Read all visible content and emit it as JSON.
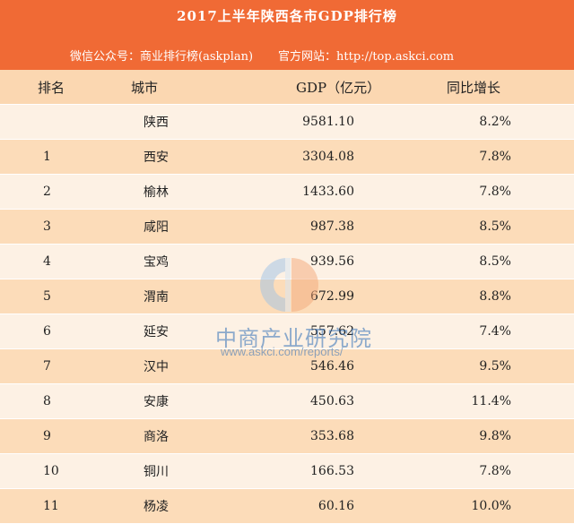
{
  "header": {
    "title": "2017上半年陕西各市GDP排行榜",
    "wechat": "微信公众号：商业排行榜(askplan)",
    "website": "官方网站：http://top.askci.com"
  },
  "chart_data": {
    "type": "table",
    "columns": [
      "排名",
      "城市",
      "GDP（亿元）",
      "同比增长"
    ],
    "rows": [
      {
        "rank": "",
        "city": "陕西",
        "gdp": "9581.10",
        "growth": "8.2%"
      },
      {
        "rank": "1",
        "city": "西安",
        "gdp": "3304.08",
        "growth": "7.8%"
      },
      {
        "rank": "2",
        "city": "榆林",
        "gdp": "1433.60",
        "growth": "7.8%"
      },
      {
        "rank": "3",
        "city": "咸阳",
        "gdp": "987.38",
        "growth": "8.5%"
      },
      {
        "rank": "4",
        "city": "宝鸡",
        "gdp": "939.56",
        "growth": "8.5%"
      },
      {
        "rank": "5",
        "city": "渭南",
        "gdp": "672.99",
        "growth": "8.8%"
      },
      {
        "rank": "6",
        "city": "延安",
        "gdp": "557.62",
        "growth": "7.4%"
      },
      {
        "rank": "7",
        "city": "汉中",
        "gdp": "546.46",
        "growth": "9.5%"
      },
      {
        "rank": "8",
        "city": "安康",
        "gdp": "450.63",
        "growth": "11.4%"
      },
      {
        "rank": "9",
        "city": "商洛",
        "gdp": "353.68",
        "growth": "9.8%"
      },
      {
        "rank": "10",
        "city": "铜川",
        "gdp": "166.53",
        "growth": "7.8%"
      },
      {
        "rank": "11",
        "city": "杨凌",
        "gdp": "60.16",
        "growth": "10.0%"
      }
    ]
  },
  "watermark": {
    "name": "中商产业研究院",
    "url": "www.askci.com/reports/"
  },
  "colors": {
    "banner": "#f06a35",
    "header_row": "#fbd7b1",
    "row_light": "#fdf1e4",
    "row_dark": "#fcdcb9",
    "watermark": "#2f6fb8"
  }
}
